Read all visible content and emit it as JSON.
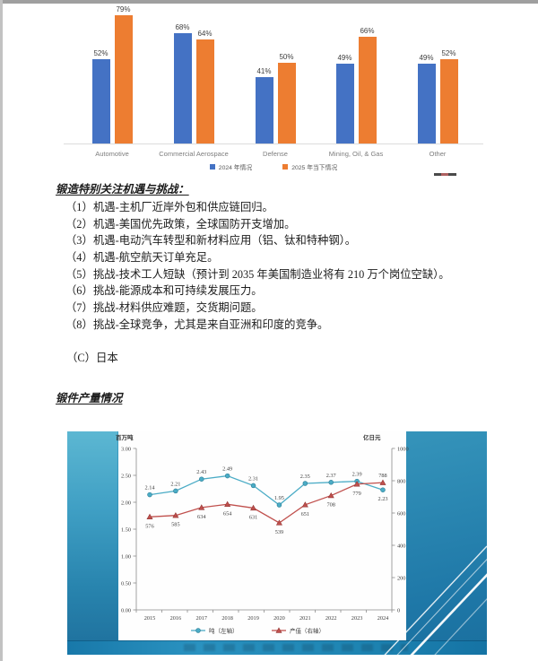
{
  "page": {
    "background": "#ffffff",
    "edge_color": "#9f9f9f"
  },
  "document": {
    "heading": "锻造特别关注机遇与挑战：",
    "items": [
      {
        "num": "（1）",
        "text": "机遇-主机厂近岸外包和供应链回归。"
      },
      {
        "num": "（2）",
        "text": "机遇-美国优先政策，全球国防开支增加。"
      },
      {
        "num": "（3）",
        "text": "机遇-电动汽车转型和新材料应用（铝、钛和特种钢）。"
      },
      {
        "num": "（4）",
        "text": "机遇-航空航天订单充足。"
      },
      {
        "num": "（5）",
        "text": "挑战-技术工人短缺（预计到 2035 年美国制造业将有 210 万个岗位空缺）。"
      },
      {
        "num": "（6）",
        "text": "挑战-能源成本和可持续发展压力。"
      },
      {
        "num": "（7）",
        "text": "挑战-材料供应难题，交货期问题。"
      },
      {
        "num": "（8）",
        "text": "挑战-全球竞争，尤其是来自亚洲和印度的竞争。"
      }
    ],
    "section_c": "（C）日本",
    "production_heading": "锻件产量情况"
  },
  "chart_data": [
    {
      "type": "bar",
      "title": "",
      "categories": [
        "Automotive",
        "Commercial Aerospace",
        "Defense",
        "Mining, Oil, & Gas",
        "Other"
      ],
      "series": [
        {
          "name": "2024 年情况",
          "color": "#4472C4",
          "values": [
            52,
            68,
            41,
            49,
            49
          ]
        },
        {
          "name": "2025 年当下情况",
          "color": "#ED7D31",
          "values": [
            79,
            64,
            50,
            66,
            52
          ]
        }
      ],
      "value_suffix": "%",
      "ylim": [
        0,
        100
      ],
      "grid": false,
      "legend_position": "bottom"
    },
    {
      "type": "line",
      "title": "",
      "x": [
        "2015",
        "2016",
        "2017",
        "2018",
        "2019",
        "2020",
        "2021",
        "2022",
        "2023",
        "2024"
      ],
      "left_axis": {
        "label": "百万吨",
        "min": 0,
        "max": 3.0,
        "ticks": [
          "3.00",
          "2.50",
          "2.00",
          "1.50",
          "1.00",
          "0.50",
          "0.00"
        ]
      },
      "right_axis": {
        "label": "亿日元",
        "min": 0,
        "max": 1000,
        "ticks": [
          "1000",
          "800",
          "600",
          "400",
          "200",
          "0"
        ]
      },
      "series": [
        {
          "name": "吨（左轴）",
          "axis": "left",
          "color": "#4BACC6",
          "stroke": "#31849B",
          "marker": "circle",
          "values": [
            2.14,
            2.21,
            2.43,
            2.49,
            2.31,
            1.95,
            2.35,
            2.37,
            2.39,
            2.23
          ],
          "labels": [
            "2.14",
            "2.21",
            "2.43",
            "2.49",
            "2.31",
            "1.95",
            "2.35",
            "2.37",
            "2.39",
            "2.23"
          ],
          "label_position": [
            "above",
            "above",
            "above",
            "above",
            "above",
            "above",
            "above",
            "above",
            "above",
            "below"
          ]
        },
        {
          "name": "产值（右轴）",
          "axis": "right",
          "color": "#C0504D",
          "stroke": "#943634",
          "marker": "triangle",
          "values": [
            576,
            585,
            634,
            654,
            631,
            539,
            651,
            708,
            779,
            788
          ],
          "labels": [
            "576",
            "585",
            "634",
            "654",
            "631",
            "539",
            "651",
            "708",
            "779",
            "788"
          ],
          "label_position": [
            "below",
            "below",
            "below",
            "below",
            "below",
            "below",
            "below",
            "below",
            "below",
            "above"
          ]
        }
      ],
      "grid": false,
      "legend_position": "bottom"
    }
  ]
}
